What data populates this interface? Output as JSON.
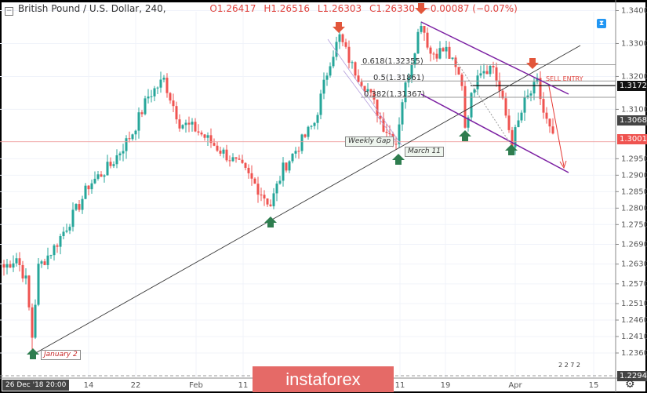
{
  "legend": {
    "symbol": "British Pound / U.S. Dollar, 240,",
    "open": "O1.26417",
    "high": "H1.26516",
    "low": "L1.26303",
    "close": "C1.26330",
    "change": "−0.00087 (−0.07%)"
  },
  "price_labels": {
    "sell_entry": "1.31722",
    "current_gray": "1.30680",
    "last": "1.30016",
    "low": "1.22942"
  },
  "annotations": {
    "fib_618": "0.618(1.32355)",
    "fib_5": "0.5(1.31861)",
    "fib_382": "0.382(1.31367)",
    "sell_entry": "SELL ENTRY",
    "january": "January 2",
    "weekly_gap": "Weekly Gap",
    "march": "March 11",
    "events": "2  2 7  2"
  },
  "crosshair_date": "26 Dec '18  20:00",
  "logo": "instaforex",
  "colors": {
    "up": "#26a69a",
    "down": "#ef5350",
    "channel": "#7b1fa2",
    "last": "#ef5350",
    "arrow_up": "#2e7d4f",
    "arrow_down": "#e2563b"
  },
  "chart_data": {
    "type": "candlestick",
    "title": "British Pound / U.S. Dollar, 240,",
    "y_ticks": [
      "1.34000",
      "1.33000",
      "1.32000",
      "1.31000",
      "1.29500",
      "1.29000",
      "1.28500",
      "1.28000",
      "1.27500",
      "1.26900",
      "1.26300",
      "1.25700",
      "1.25100",
      "1.24600",
      "1.24100",
      "1.23600"
    ],
    "x_ticks": [
      "14",
      "22",
      "Feb",
      "11",
      "11",
      "19",
      "Apr",
      "15"
    ],
    "ylim": [
      1.2294,
      1.343
    ],
    "grid": true,
    "approx_close_path": [
      [
        0,
        1.262
      ],
      [
        4,
        1.265
      ],
      [
        7,
        1.258
      ],
      [
        9,
        1.241
      ],
      [
        11,
        1.262
      ],
      [
        16,
        1.268
      ],
      [
        24,
        1.281
      ],
      [
        27,
        1.287
      ],
      [
        34,
        1.293
      ],
      [
        41,
        1.303
      ],
      [
        46,
        1.314
      ],
      [
        51,
        1.319
      ],
      [
        56,
        1.306
      ],
      [
        61,
        1.304
      ],
      [
        66,
        1.3
      ],
      [
        71,
        1.296
      ],
      [
        76,
        1.292
      ],
      [
        81,
        1.286
      ],
      [
        85,
        1.281
      ],
      [
        89,
        1.292
      ],
      [
        94,
        1.299
      ],
      [
        99,
        1.306
      ],
      [
        104,
        1.325
      ],
      [
        107,
        1.332
      ],
      [
        111,
        1.323
      ],
      [
        116,
        1.316
      ],
      [
        121,
        1.305
      ],
      [
        125,
        1.3
      ],
      [
        127,
        1.313
      ],
      [
        130,
        1.325
      ],
      [
        133,
        1.337
      ],
      [
        136,
        1.327
      ],
      [
        141,
        1.328
      ],
      [
        146,
        1.318
      ],
      [
        147,
        1.305
      ],
      [
        151,
        1.322
      ],
      [
        156,
        1.323
      ],
      [
        160,
        1.308
      ],
      [
        162,
        1.3
      ],
      [
        166,
        1.312
      ],
      [
        170,
        1.318
      ],
      [
        172,
        1.309
      ],
      [
        175,
        1.301
      ]
    ]
  }
}
